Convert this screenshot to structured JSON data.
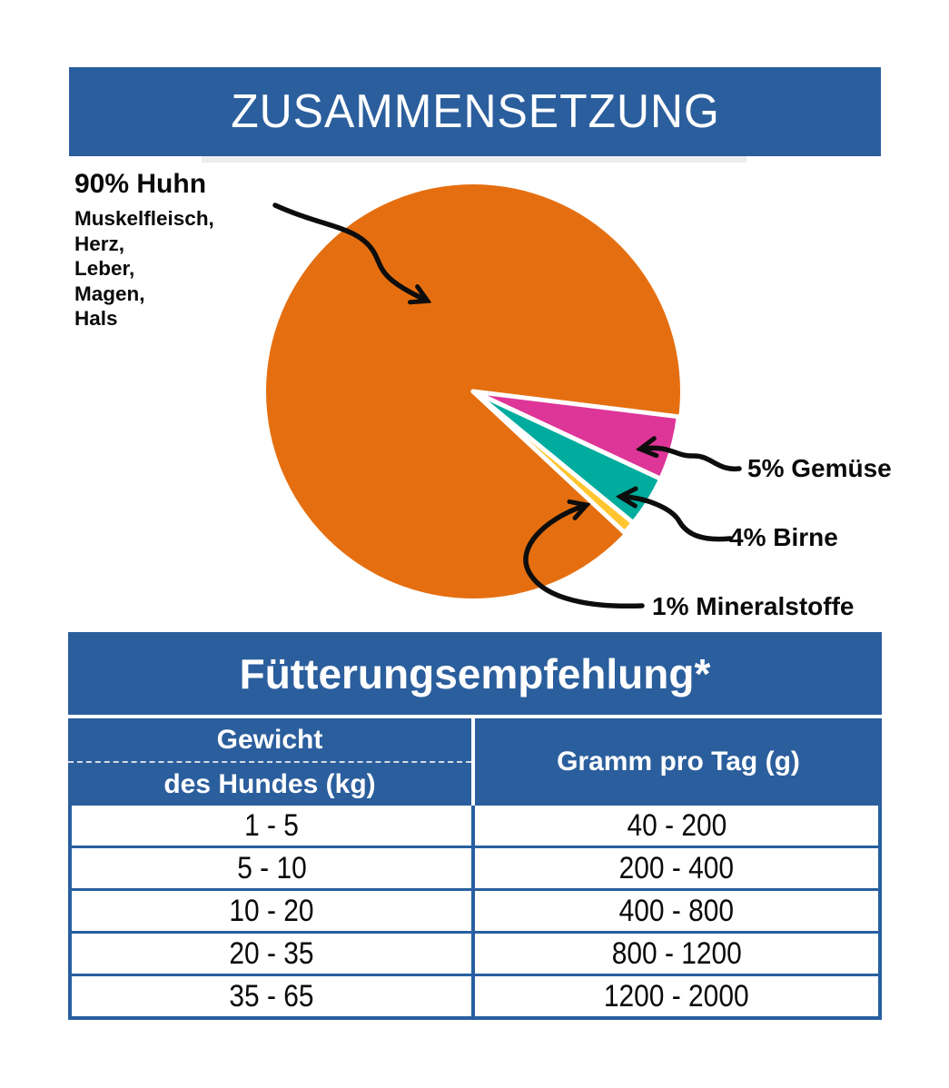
{
  "header": {
    "title": "ZUSAMMENSETZUNG"
  },
  "chart_data": [
    {
      "type": "pie",
      "title": "ZUSAMMENSETZUNG",
      "start_angle_deg": 7,
      "direction": "clockwise",
      "legend_position": "annotations-with-arrows",
      "slices": [
        {
          "key": "huhn",
          "name": "Huhn",
          "label": "90% Huhn",
          "value": 90,
          "color": "#E56F10",
          "sublabel_lines": [
            "Muskelfleisch,",
            "Herz,",
            "Leber,",
            "Magen,",
            "Hals"
          ]
        },
        {
          "key": "gemuese",
          "name": "Gemüse",
          "label": "5% Gemüse",
          "value": 5,
          "color": "#DE3598"
        },
        {
          "key": "birne",
          "name": "Birne",
          "label": "4% Birne",
          "value": 4,
          "color": "#00AC9E"
        },
        {
          "key": "mineralstoffe",
          "name": "Mineralstoffe",
          "label": "1% Mineralstoffe",
          "value": 1,
          "color": "#FFC52E"
        }
      ]
    },
    {
      "type": "table",
      "title": "Fütterungsempfehlung*",
      "columns": [
        "Gewicht des Hundes (kg)",
        "Gramm pro Tag (g)"
      ],
      "header_col1_line1": "Gewicht",
      "header_col1_line2": "des Hundes (kg)",
      "header_col2": "Gramm pro Tag (g)",
      "rows": [
        [
          "1 - 5",
          "40 - 200"
        ],
        [
          "5 - 10",
          "200 - 400"
        ],
        [
          "10 - 20",
          "400 - 800"
        ],
        [
          "20 - 35",
          "800 - 1200"
        ],
        [
          "35 - 65",
          "1200 - 2000"
        ]
      ]
    }
  ],
  "colors": {
    "accent_blue": "#2B5E9D",
    "orange": "#E56F10",
    "magenta": "#DE3598",
    "teal": "#00AC9E",
    "yellow": "#FFC52E"
  }
}
